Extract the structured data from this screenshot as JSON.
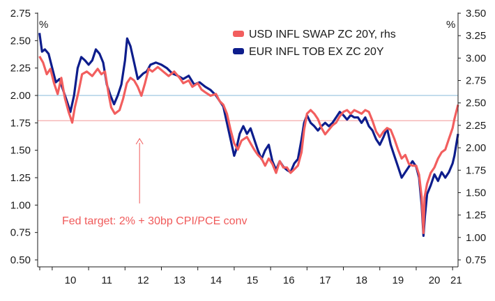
{
  "chart_data": {
    "type": "line",
    "title": "",
    "left_axis": {
      "unit_label": "%",
      "ylim": [
        0.5,
        2.75
      ],
      "ticks": [
        "0.50",
        "0.75",
        "1.00",
        "1.25",
        "1.50",
        "1.75",
        "2.00",
        "2.25",
        "2.50",
        "2.75"
      ]
    },
    "right_axis": {
      "unit_label": "%",
      "ylim": [
        0.75,
        3.5
      ],
      "ticks": [
        "0.75",
        "1.00",
        "1.25",
        "1.50",
        "1.75",
        "2.00",
        "2.25",
        "2.50",
        "2.75",
        "3.00",
        "3.25",
        "3.50"
      ]
    },
    "x_axis": {
      "xlim": [
        2009.6,
        2021.15
      ],
      "tick_labels": [
        "10",
        "11",
        "12",
        "13",
        "14",
        "15",
        "16",
        "17",
        "18",
        "19",
        "20",
        "21"
      ]
    },
    "legend": {
      "placement": "top-right"
    },
    "reference_lines": [
      {
        "axis": "left",
        "value": 2.0,
        "color": "#9fc8e0"
      },
      {
        "axis": "left",
        "value": 1.77,
        "color": "#f4a0a0"
      }
    ],
    "annotation": {
      "text": "Fed target: 2% + 30bp CPI/PCE conv",
      "arrow_x": 2012.4,
      "color": "#f05a5a"
    },
    "series": [
      {
        "name": "USD INFL SWAP ZC 20Y, rhs",
        "axis": "right",
        "color": "#f25e5e",
        "points": [
          [
            2009.65,
            3.02
          ],
          [
            2009.75,
            2.95
          ],
          [
            2009.85,
            2.82
          ],
          [
            2009.95,
            2.88
          ],
          [
            2010.05,
            2.72
          ],
          [
            2010.15,
            2.6
          ],
          [
            2010.25,
            2.78
          ],
          [
            2010.35,
            2.55
          ],
          [
            2010.45,
            2.4
          ],
          [
            2010.55,
            2.28
          ],
          [
            2010.62,
            2.45
          ],
          [
            2010.72,
            2.62
          ],
          [
            2010.82,
            2.82
          ],
          [
            2010.95,
            2.85
          ],
          [
            2011.1,
            2.8
          ],
          [
            2011.25,
            2.88
          ],
          [
            2011.35,
            2.82
          ],
          [
            2011.45,
            2.85
          ],
          [
            2011.55,
            2.6
          ],
          [
            2011.62,
            2.45
          ],
          [
            2011.72,
            2.38
          ],
          [
            2011.85,
            2.42
          ],
          [
            2011.95,
            2.55
          ],
          [
            2012.05,
            2.72
          ],
          [
            2012.15,
            2.78
          ],
          [
            2012.25,
            2.75
          ],
          [
            2012.35,
            2.68
          ],
          [
            2012.45,
            2.58
          ],
          [
            2012.55,
            2.72
          ],
          [
            2012.65,
            2.88
          ],
          [
            2012.75,
            2.85
          ],
          [
            2012.9,
            2.9
          ],
          [
            2013.05,
            2.85
          ],
          [
            2013.2,
            2.8
          ],
          [
            2013.35,
            2.85
          ],
          [
            2013.5,
            2.78
          ],
          [
            2013.6,
            2.72
          ],
          [
            2013.75,
            2.75
          ],
          [
            2013.85,
            2.68
          ],
          [
            2014.0,
            2.72
          ],
          [
            2014.1,
            2.65
          ],
          [
            2014.2,
            2.62
          ],
          [
            2014.35,
            2.58
          ],
          [
            2014.5,
            2.6
          ],
          [
            2014.6,
            2.52
          ],
          [
            2014.7,
            2.48
          ],
          [
            2014.8,
            2.38
          ],
          [
            2014.9,
            2.2
          ],
          [
            2015.0,
            2.05
          ],
          [
            2015.1,
            1.98
          ],
          [
            2015.2,
            2.08
          ],
          [
            2015.35,
            2.12
          ],
          [
            2015.45,
            2.05
          ],
          [
            2015.55,
            1.98
          ],
          [
            2015.65,
            1.92
          ],
          [
            2015.75,
            1.88
          ],
          [
            2015.85,
            1.8
          ],
          [
            2015.95,
            1.88
          ],
          [
            2016.05,
            1.82
          ],
          [
            2016.15,
            1.72
          ],
          [
            2016.25,
            1.85
          ],
          [
            2016.35,
            1.78
          ],
          [
            2016.45,
            1.78
          ],
          [
            2016.55,
            1.72
          ],
          [
            2016.65,
            1.76
          ],
          [
            2016.75,
            1.8
          ],
          [
            2016.85,
            1.95
          ],
          [
            2016.92,
            2.2
          ],
          [
            2017.0,
            2.38
          ],
          [
            2017.1,
            2.42
          ],
          [
            2017.2,
            2.38
          ],
          [
            2017.3,
            2.32
          ],
          [
            2017.4,
            2.22
          ],
          [
            2017.5,
            2.15
          ],
          [
            2017.6,
            2.2
          ],
          [
            2017.7,
            2.25
          ],
          [
            2017.8,
            2.28
          ],
          [
            2017.9,
            2.35
          ],
          [
            2018.0,
            2.4
          ],
          [
            2018.1,
            2.42
          ],
          [
            2018.2,
            2.38
          ],
          [
            2018.3,
            2.42
          ],
          [
            2018.4,
            2.4
          ],
          [
            2018.5,
            2.38
          ],
          [
            2018.6,
            2.42
          ],
          [
            2018.7,
            2.4
          ],
          [
            2018.8,
            2.3
          ],
          [
            2018.9,
            2.18
          ],
          [
            2019.0,
            2.12
          ],
          [
            2019.1,
            2.18
          ],
          [
            2019.2,
            2.22
          ],
          [
            2019.3,
            2.2
          ],
          [
            2019.4,
            2.1
          ],
          [
            2019.5,
            1.98
          ],
          [
            2019.6,
            1.88
          ],
          [
            2019.7,
            1.92
          ],
          [
            2019.8,
            1.82
          ],
          [
            2019.9,
            1.8
          ],
          [
            2020.0,
            1.8
          ],
          [
            2020.08,
            1.7
          ],
          [
            2020.15,
            1.45
          ],
          [
            2020.2,
            1.05
          ],
          [
            2020.23,
            1.45
          ],
          [
            2020.3,
            1.6
          ],
          [
            2020.4,
            1.72
          ],
          [
            2020.5,
            1.78
          ],
          [
            2020.6,
            1.88
          ],
          [
            2020.7,
            1.95
          ],
          [
            2020.8,
            1.98
          ],
          [
            2020.9,
            2.1
          ],
          [
            2021.0,
            2.22
          ],
          [
            2021.05,
            2.32
          ],
          [
            2021.1,
            2.4
          ],
          [
            2021.15,
            2.48
          ]
        ]
      },
      {
        "name": "EUR INFL TOB EX ZC 20Y",
        "axis": "left",
        "color": "#0d1d8c",
        "points": [
          [
            2009.65,
            2.57
          ],
          [
            2009.72,
            2.4
          ],
          [
            2009.8,
            2.42
          ],
          [
            2009.9,
            2.38
          ],
          [
            2010.0,
            2.25
          ],
          [
            2010.1,
            2.12
          ],
          [
            2010.2,
            2.15
          ],
          [
            2010.3,
            2.05
          ],
          [
            2010.4,
            1.95
          ],
          [
            2010.5,
            1.85
          ],
          [
            2010.6,
            2.0
          ],
          [
            2010.7,
            2.25
          ],
          [
            2010.8,
            2.35
          ],
          [
            2010.9,
            2.32
          ],
          [
            2011.0,
            2.28
          ],
          [
            2011.1,
            2.32
          ],
          [
            2011.2,
            2.42
          ],
          [
            2011.3,
            2.38
          ],
          [
            2011.4,
            2.3
          ],
          [
            2011.5,
            2.1
          ],
          [
            2011.6,
            2.0
          ],
          [
            2011.7,
            1.92
          ],
          [
            2011.8,
            2.0
          ],
          [
            2011.9,
            2.1
          ],
          [
            2012.0,
            2.32
          ],
          [
            2012.06,
            2.52
          ],
          [
            2012.15,
            2.45
          ],
          [
            2012.25,
            2.3
          ],
          [
            2012.35,
            2.15
          ],
          [
            2012.5,
            2.2
          ],
          [
            2012.6,
            2.22
          ],
          [
            2012.7,
            2.28
          ],
          [
            2012.85,
            2.3
          ],
          [
            2013.0,
            2.28
          ],
          [
            2013.15,
            2.25
          ],
          [
            2013.3,
            2.2
          ],
          [
            2013.45,
            2.18
          ],
          [
            2013.6,
            2.15
          ],
          [
            2013.75,
            2.18
          ],
          [
            2013.9,
            2.1
          ],
          [
            2014.05,
            2.12
          ],
          [
            2014.2,
            2.08
          ],
          [
            2014.35,
            2.05
          ],
          [
            2014.5,
            2.0
          ],
          [
            2014.6,
            1.95
          ],
          [
            2014.7,
            1.9
          ],
          [
            2014.8,
            1.75
          ],
          [
            2014.9,
            1.6
          ],
          [
            2015.0,
            1.45
          ],
          [
            2015.05,
            1.5
          ],
          [
            2015.15,
            1.65
          ],
          [
            2015.25,
            1.72
          ],
          [
            2015.35,
            1.65
          ],
          [
            2015.45,
            1.7
          ],
          [
            2015.55,
            1.6
          ],
          [
            2015.65,
            1.5
          ],
          [
            2015.75,
            1.42
          ],
          [
            2015.85,
            1.5
          ],
          [
            2015.95,
            1.55
          ],
          [
            2016.05,
            1.4
          ],
          [
            2016.15,
            1.32
          ],
          [
            2016.25,
            1.4
          ],
          [
            2016.35,
            1.35
          ],
          [
            2016.45,
            1.32
          ],
          [
            2016.55,
            1.3
          ],
          [
            2016.65,
            1.38
          ],
          [
            2016.75,
            1.42
          ],
          [
            2016.85,
            1.6
          ],
          [
            2016.92,
            1.75
          ],
          [
            2017.0,
            1.82
          ],
          [
            2017.1,
            1.75
          ],
          [
            2017.2,
            1.72
          ],
          [
            2017.3,
            1.68
          ],
          [
            2017.4,
            1.72
          ],
          [
            2017.5,
            1.75
          ],
          [
            2017.6,
            1.72
          ],
          [
            2017.7,
            1.75
          ],
          [
            2017.8,
            1.8
          ],
          [
            2017.9,
            1.85
          ],
          [
            2018.0,
            1.82
          ],
          [
            2018.1,
            1.78
          ],
          [
            2018.2,
            1.82
          ],
          [
            2018.3,
            1.8
          ],
          [
            2018.4,
            1.8
          ],
          [
            2018.5,
            1.75
          ],
          [
            2018.6,
            1.8
          ],
          [
            2018.7,
            1.72
          ],
          [
            2018.8,
            1.68
          ],
          [
            2018.9,
            1.6
          ],
          [
            2019.0,
            1.55
          ],
          [
            2019.1,
            1.62
          ],
          [
            2019.2,
            1.7
          ],
          [
            2019.3,
            1.55
          ],
          [
            2019.4,
            1.45
          ],
          [
            2019.5,
            1.35
          ],
          [
            2019.6,
            1.25
          ],
          [
            2019.7,
            1.3
          ],
          [
            2019.8,
            1.35
          ],
          [
            2019.9,
            1.4
          ],
          [
            2020.0,
            1.35
          ],
          [
            2020.08,
            1.25
          ],
          [
            2020.15,
            1.0
          ],
          [
            2020.2,
            0.72
          ],
          [
            2020.24,
            0.9
          ],
          [
            2020.3,
            1.1
          ],
          [
            2020.4,
            1.18
          ],
          [
            2020.5,
            1.28
          ],
          [
            2020.6,
            1.22
          ],
          [
            2020.7,
            1.3
          ],
          [
            2020.8,
            1.25
          ],
          [
            2020.9,
            1.3
          ],
          [
            2021.0,
            1.38
          ],
          [
            2021.05,
            1.45
          ],
          [
            2021.1,
            1.55
          ],
          [
            2021.15,
            1.65
          ]
        ]
      }
    ]
  }
}
